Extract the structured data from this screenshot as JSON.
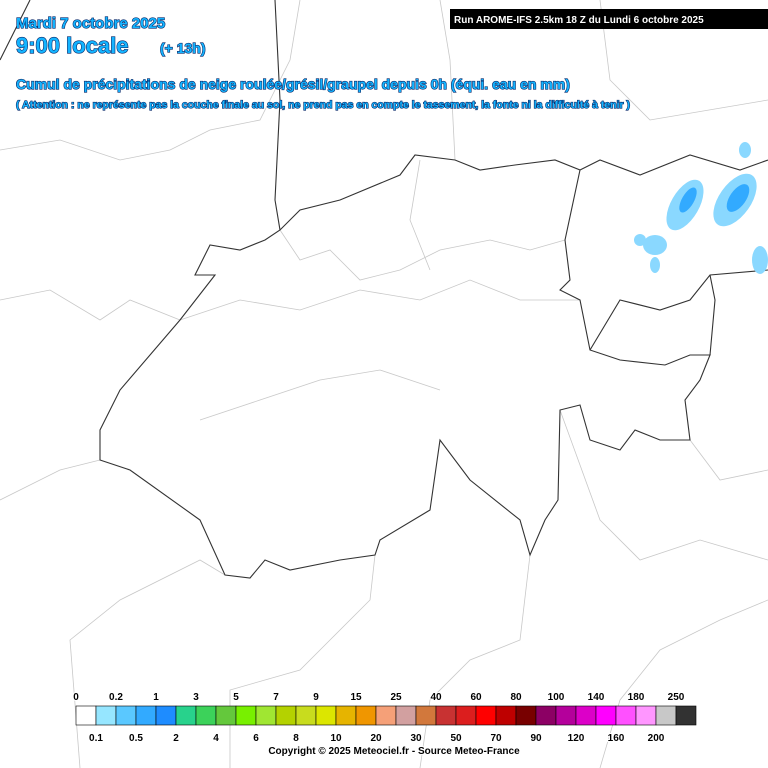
{
  "header": {
    "date": "Mardi 7 octobre 2025",
    "time": "9:00 locale",
    "offset": "(+ 13h)",
    "run": "Run AROME-IFS 2.5km 18 Z du Lundi 6 octobre 2025",
    "title": "Cumul de précipitations de neige roulée/grésil/graupel depuis 0h (équi. eau en mm)",
    "note": "( Attention : ne représente pas la couche finale au sol, ne prend pas en compte le tassement, la fonte ni la difficulté à tenir )"
  },
  "legend": {
    "labels": [
      0,
      0.1,
      0.2,
      0.5,
      1,
      2,
      3,
      4,
      5,
      6,
      7,
      8,
      9,
      10,
      15,
      20,
      25,
      30,
      40,
      50,
      60,
      70,
      80,
      90,
      100,
      120,
      140,
      160,
      180,
      200,
      250
    ],
    "colors": [
      "#ffffff",
      "#96e6ff",
      "#5ac8ff",
      "#32aaff",
      "#1e8cff",
      "#28d28c",
      "#3cd25a",
      "#64c83c",
      "#78f000",
      "#a0e632",
      "#b4d200",
      "#c8dc1e",
      "#dce600",
      "#e6b400",
      "#f09600",
      "#f5a078",
      "#d2a0a0",
      "#d2783c",
      "#c83232",
      "#dc1e1e",
      "#ff0000",
      "#be0000",
      "#780000",
      "#8c0064",
      "#b4009b",
      "#dc00c8",
      "#ff00ff",
      "#ff50ff",
      "#ff96ff",
      "#c8c8c8",
      "#323232"
    ]
  },
  "footer": {
    "copyright": "Copyright © 2025 Meteociel.fr - Source Meteo-France"
  }
}
